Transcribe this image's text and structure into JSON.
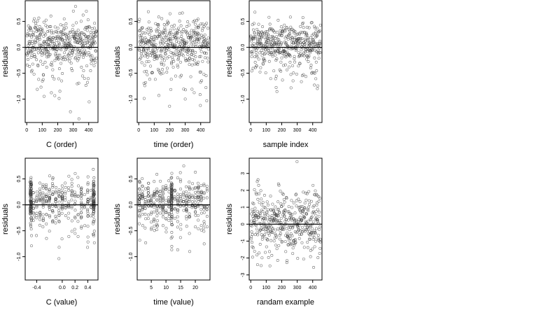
{
  "chart_data": [
    {
      "type": "scatter",
      "xlabel": "C (order)",
      "ylabel": "residuals",
      "xlim": [
        -10,
        460
      ],
      "ylim": [
        -1.45,
        0.9
      ],
      "xticks": [
        0,
        100,
        200,
        300,
        400
      ],
      "yticks": [
        -1.0,
        -0.5,
        0.0,
        0.5
      ],
      "xtick_labels": [
        "0",
        "100",
        "200",
        "300",
        "400"
      ],
      "ytick_labels": [
        "-1.0",
        "-0.5",
        "0.0",
        "0.5"
      ],
      "hline": 0,
      "seed": 11,
      "pattern": "order",
      "n": 450,
      "x_range": [
        1,
        450
      ]
    },
    {
      "type": "scatter",
      "xlabel": "time (order)",
      "ylabel": "residuals",
      "xlim": [
        -10,
        460
      ],
      "ylim": [
        -1.45,
        0.9
      ],
      "xticks": [
        0,
        100,
        200,
        300,
        400
      ],
      "yticks": [
        -1.0,
        -0.5,
        0.0,
        0.5
      ],
      "xtick_labels": [
        "0",
        "100",
        "200",
        "300",
        "400"
      ],
      "ytick_labels": [
        "-1.0",
        "-0.5",
        "0.0",
        "0.5"
      ],
      "hline": 0,
      "seed": 23,
      "pattern": "order",
      "n": 450,
      "x_range": [
        1,
        450
      ]
    },
    {
      "type": "scatter",
      "xlabel": "sample index",
      "ylabel": "residuals",
      "xlim": [
        -10,
        460
      ],
      "ylim": [
        -1.45,
        0.9
      ],
      "xticks": [
        0,
        100,
        200,
        300,
        400
      ],
      "yticks": [
        -1.0,
        -0.5,
        0.0,
        0.5
      ],
      "xtick_labels": [
        "0",
        "100",
        "200",
        "300",
        "400"
      ],
      "ytick_labels": [
        "-1.0",
        "-0.5",
        "0.0",
        "0.5"
      ],
      "hline": 0,
      "seed": 37,
      "pattern": "order",
      "n": 450,
      "x_range": [
        1,
        450
      ]
    },
    {
      "type": "scatter",
      "xlabel": "C (value)",
      "ylabel": "residuals",
      "xlim": [
        -0.58,
        0.56
      ],
      "ylim": [
        -1.45,
        0.9
      ],
      "xticks": [
        -0.4,
        0.0,
        0.2,
        0.4
      ],
      "yticks": [
        -1.0,
        -0.5,
        0.0,
        0.5
      ],
      "xtick_labels": [
        "-0.4",
        "0.0",
        "0.2",
        "0.4"
      ],
      "ytick_labels": [
        "-1.0",
        "-0.5",
        "0.0",
        "0.5"
      ],
      "hline": 0,
      "seed": 41,
      "pattern": "cvalue",
      "n": 450
    },
    {
      "type": "scatter",
      "xlabel": "time (value)",
      "ylabel": "residuals",
      "xlim": [
        0.2,
        25.0
      ],
      "ylim": [
        -1.45,
        0.9
      ],
      "xticks": [
        5,
        10,
        15,
        20
      ],
      "yticks": [
        -1.0,
        -0.5,
        0.0,
        0.5
      ],
      "xtick_labels": [
        "5",
        "10",
        "15",
        "20"
      ],
      "ytick_labels": [
        "-1.0",
        "-0.5",
        "0.0",
        "0.5"
      ],
      "hline": 0,
      "seed": 53,
      "pattern": "tvalue",
      "n": 450
    },
    {
      "type": "scatter",
      "xlabel": "randam example",
      "ylabel": "residuals",
      "xlim": [
        -10,
        460
      ],
      "ylim": [
        -3.3,
        3.9
      ],
      "xticks": [
        0,
        100,
        200,
        300,
        400
      ],
      "yticks": [
        -3,
        -2,
        -1,
        0,
        1,
        2,
        3
      ],
      "xtick_labels": [
        "0",
        "100",
        "200",
        "300",
        "400"
      ],
      "ytick_labels": [
        "-3",
        "-2",
        "-1",
        "0",
        "1",
        "2",
        "3"
      ],
      "hline": 0,
      "seed": 67,
      "pattern": "random",
      "n": 450,
      "x_range": [
        1,
        450
      ]
    }
  ],
  "colors": {
    "point": "#3a3a3a",
    "axis": "#000000",
    "background": "#ffffff"
  }
}
